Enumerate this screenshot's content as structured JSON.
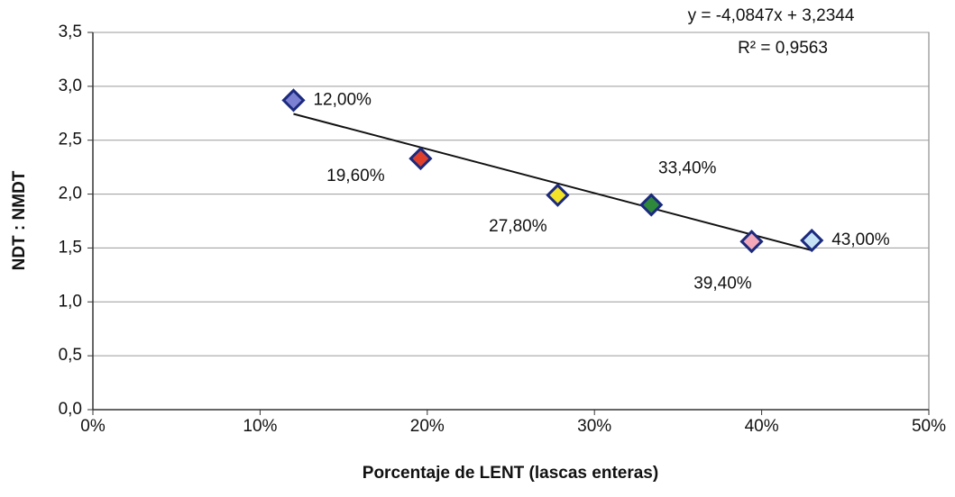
{
  "chart_data": {
    "type": "scatter",
    "x_label": "Porcentaje de LENT (lascas  enteras)",
    "y_label": "NDT : NMDT",
    "annotations": [
      "y = -4,0847x + 3,2344",
      "R² = 0,9563"
    ],
    "series": [
      {
        "x": [
          12,
          19.6,
          27.8,
          33.4,
          39.4,
          43
        ],
        "values": [
          2.87,
          2.33,
          1.99,
          1.9,
          1.56,
          1.57
        ],
        "value_labels": [
          "12,00%",
          "19,60%",
          "27,80%",
          "33,40%",
          "39,40%",
          "43,00%"
        ],
        "colors": [
          "#7b80d2",
          "#e0402a",
          "#f2e228",
          "#2e8a3a",
          "#f2a8b8",
          "#c4e2f4"
        ]
      }
    ],
    "trendline": {
      "x": [
        12,
        43
      ],
      "values": [
        2.744,
        1.478
      ],
      "color": "#111111"
    },
    "xlim": [
      0,
      50
    ],
    "xticks": [
      {
        "value": 0,
        "label": "0%"
      },
      {
        "value": 10,
        "label": "10%"
      },
      {
        "value": 20,
        "label": "20%"
      },
      {
        "value": 30,
        "label": "30%"
      },
      {
        "value": 40,
        "label": "40%"
      },
      {
        "value": 50,
        "label": "50%"
      }
    ],
    "ylim": [
      0,
      3.5
    ],
    "yticks": [
      {
        "value": 0,
        "label": "0,0"
      },
      {
        "value": 0.5,
        "label": "0,5"
      },
      {
        "value": 1,
        "label": "1,0"
      },
      {
        "value": 1.5,
        "label": "1,5"
      },
      {
        "value": 2,
        "label": "2,0"
      },
      {
        "value": 2.5,
        "label": "2,5"
      },
      {
        "value": 3,
        "label": "3,0"
      },
      {
        "value": 3.5,
        "label": "3,5"
      }
    ],
    "grid": true
  }
}
